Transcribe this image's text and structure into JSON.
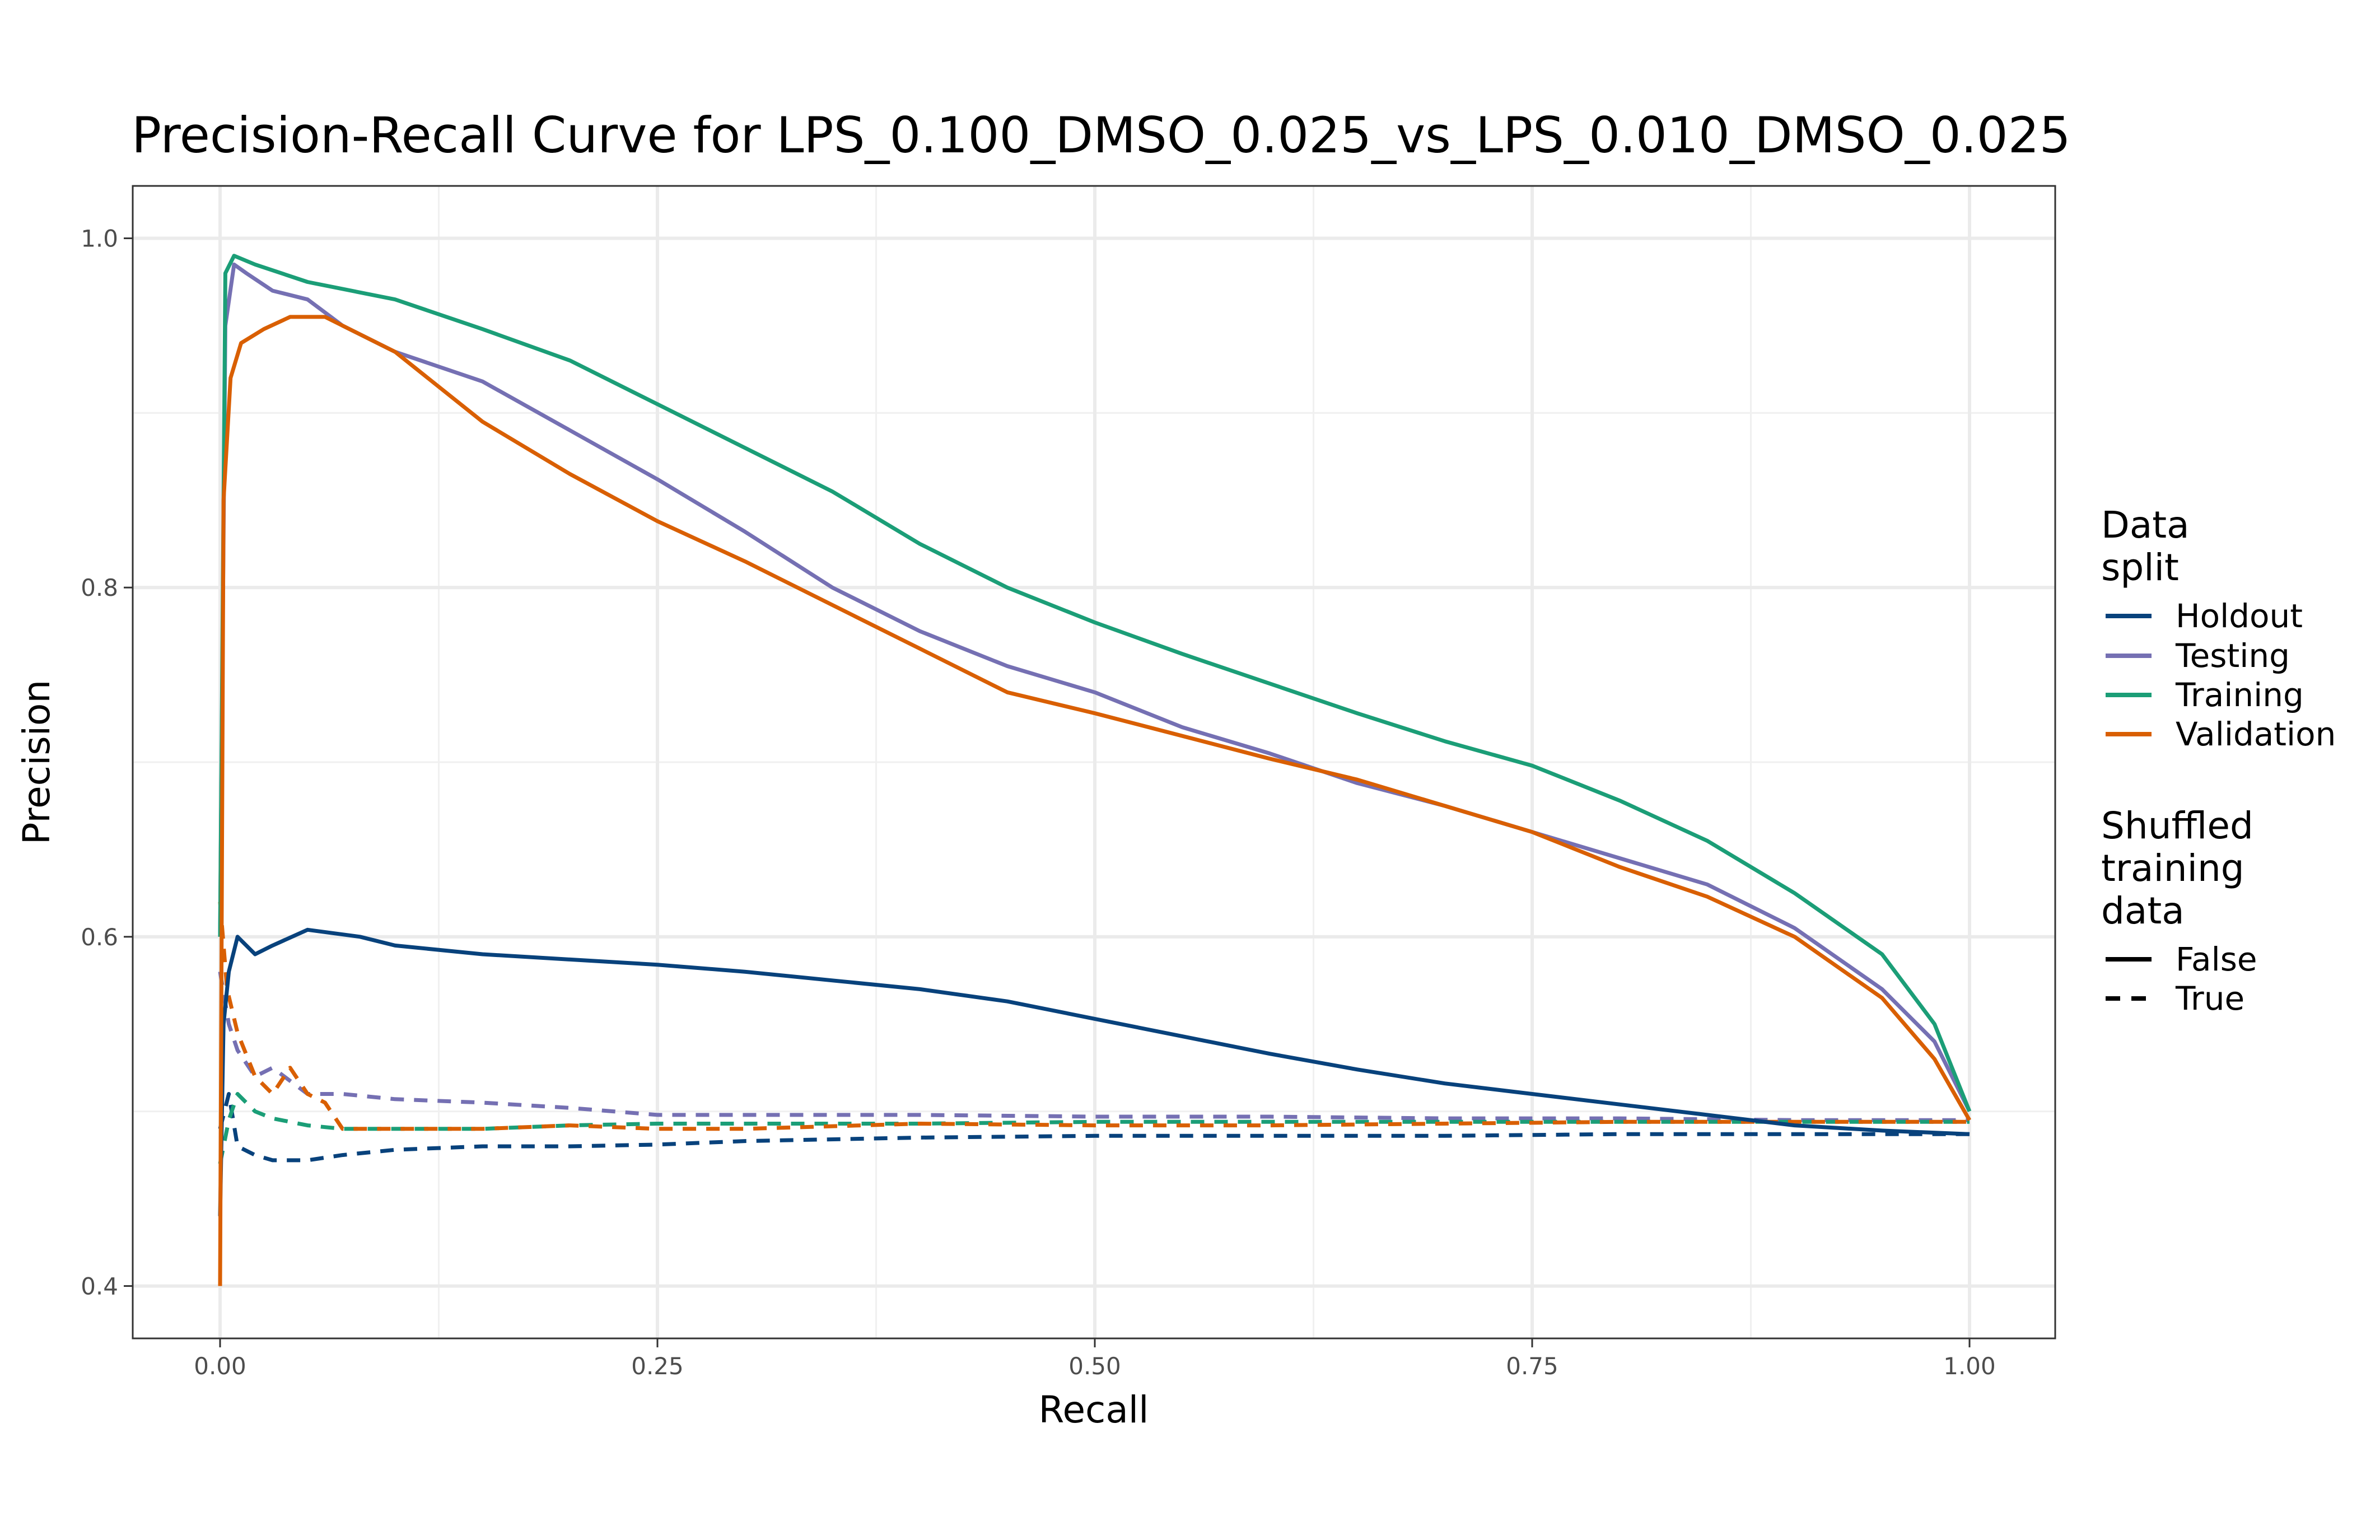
{
  "chart_data": {
    "type": "line",
    "title": "Precision-Recall Curve for LPS_0.100_DMSO_0.025_vs_LPS_0.010_DMSO_0.025",
    "xlabel": "Recall",
    "ylabel": "Precision",
    "xlim": [
      0,
      1
    ],
    "ylim": [
      0.37,
      1.03
    ],
    "x_ticks": [
      0.0,
      0.25,
      0.5,
      0.75,
      1.0
    ],
    "x_tick_labels": [
      "0.00",
      "0.25",
      "0.50",
      "0.75",
      "1.00"
    ],
    "y_ticks": [
      0.4,
      0.6,
      0.8,
      1.0
    ],
    "y_tick_labels": [
      "0.4",
      "0.6",
      "0.8",
      "1.0"
    ],
    "grid": true,
    "legend": {
      "placement": "right",
      "color_title": [
        "Data",
        "split"
      ],
      "linetype_title": [
        "Shuffled",
        "training",
        "data"
      ],
      "color_entries": [
        {
          "label": "Holdout",
          "color": "#08427c"
        },
        {
          "label": "Testing",
          "color": "#7570b3"
        },
        {
          "label": "Training",
          "color": "#1b9e77"
        },
        {
          "label": "Validation",
          "color": "#d95f02"
        }
      ],
      "linetype_entries": [
        {
          "label": "False",
          "dash": "solid"
        },
        {
          "label": "True",
          "dash": "dashed"
        }
      ]
    },
    "series": [
      {
        "split": "Holdout",
        "shuffled": "False",
        "color": "#08427c",
        "dash": "solid",
        "x": [
          0,
          0.002,
          0.005,
          0.01,
          0.02,
          0.03,
          0.05,
          0.08,
          0.1,
          0.15,
          0.2,
          0.25,
          0.3,
          0.35,
          0.4,
          0.45,
          0.5,
          0.55,
          0.6,
          0.65,
          0.7,
          0.75,
          0.8,
          0.85,
          0.9,
          0.95,
          1.0
        ],
        "y": [
          0.44,
          0.55,
          0.58,
          0.6,
          0.59,
          0.595,
          0.604,
          0.6,
          0.595,
          0.59,
          0.587,
          0.584,
          0.58,
          0.575,
          0.57,
          0.563,
          0.553,
          0.543,
          0.533,
          0.524,
          0.516,
          0.51,
          0.504,
          0.498,
          0.492,
          0.489,
          0.487
        ]
      },
      {
        "split": "Testing",
        "shuffled": "False",
        "color": "#7570b3",
        "dash": "solid",
        "x": [
          0,
          0.003,
          0.008,
          0.015,
          0.03,
          0.05,
          0.07,
          0.1,
          0.15,
          0.2,
          0.25,
          0.3,
          0.35,
          0.4,
          0.45,
          0.5,
          0.55,
          0.6,
          0.65,
          0.7,
          0.75,
          0.8,
          0.85,
          0.9,
          0.95,
          0.98,
          1.0
        ],
        "y": [
          0.6,
          0.95,
          0.985,
          0.98,
          0.97,
          0.965,
          0.95,
          0.935,
          0.918,
          0.89,
          0.862,
          0.832,
          0.8,
          0.775,
          0.755,
          0.74,
          0.72,
          0.705,
          0.688,
          0.675,
          0.66,
          0.645,
          0.63,
          0.605,
          0.57,
          0.54,
          0.5
        ]
      },
      {
        "split": "Training",
        "shuffled": "False",
        "color": "#1b9e77",
        "dash": "solid",
        "x": [
          0,
          0.003,
          0.008,
          0.02,
          0.05,
          0.1,
          0.15,
          0.2,
          0.25,
          0.3,
          0.35,
          0.4,
          0.45,
          0.5,
          0.55,
          0.6,
          0.65,
          0.7,
          0.75,
          0.8,
          0.85,
          0.9,
          0.95,
          0.98,
          1.0
        ],
        "y": [
          0.6,
          0.98,
          0.99,
          0.985,
          0.975,
          0.965,
          0.948,
          0.93,
          0.905,
          0.88,
          0.855,
          0.825,
          0.8,
          0.78,
          0.762,
          0.745,
          0.728,
          0.712,
          0.698,
          0.678,
          0.655,
          0.625,
          0.59,
          0.55,
          0.5
        ]
      },
      {
        "split": "Validation",
        "shuffled": "False",
        "color": "#d95f02",
        "dash": "solid",
        "x": [
          0,
          0.002,
          0.006,
          0.012,
          0.025,
          0.04,
          0.06,
          0.1,
          0.15,
          0.2,
          0.25,
          0.3,
          0.35,
          0.4,
          0.45,
          0.5,
          0.55,
          0.6,
          0.65,
          0.7,
          0.75,
          0.8,
          0.85,
          0.9,
          0.95,
          0.98,
          1.0
        ],
        "y": [
          0.4,
          0.85,
          0.92,
          0.94,
          0.948,
          0.955,
          0.955,
          0.935,
          0.895,
          0.865,
          0.838,
          0.815,
          0.79,
          0.765,
          0.74,
          0.728,
          0.715,
          0.702,
          0.69,
          0.675,
          0.66,
          0.64,
          0.623,
          0.6,
          0.565,
          0.53,
          0.495
        ]
      },
      {
        "split": "Holdout",
        "shuffled": "True",
        "color": "#08427c",
        "dash": "dashed",
        "x": [
          0,
          0.005,
          0.01,
          0.02,
          0.03,
          0.05,
          0.07,
          0.1,
          0.15,
          0.2,
          0.25,
          0.3,
          0.4,
          0.5,
          0.6,
          0.7,
          0.8,
          0.9,
          1.0
        ],
        "y": [
          0.49,
          0.51,
          0.48,
          0.475,
          0.472,
          0.472,
          0.475,
          0.478,
          0.48,
          0.48,
          0.481,
          0.483,
          0.485,
          0.486,
          0.486,
          0.486,
          0.487,
          0.487,
          0.487
        ]
      },
      {
        "split": "Testing",
        "shuffled": "True",
        "color": "#7570b3",
        "dash": "dashed",
        "x": [
          0,
          0.005,
          0.01,
          0.02,
          0.03,
          0.05,
          0.07,
          0.1,
          0.15,
          0.2,
          0.25,
          0.3,
          0.4,
          0.5,
          0.6,
          0.7,
          0.8,
          0.9,
          1.0
        ],
        "y": [
          0.58,
          0.55,
          0.535,
          0.52,
          0.525,
          0.51,
          0.51,
          0.507,
          0.505,
          0.502,
          0.498,
          0.498,
          0.498,
          0.497,
          0.497,
          0.496,
          0.496,
          0.495,
          0.495
        ]
      },
      {
        "split": "Training",
        "shuffled": "True",
        "color": "#1b9e77",
        "dash": "dashed",
        "x": [
          0,
          0.005,
          0.01,
          0.02,
          0.03,
          0.05,
          0.07,
          0.1,
          0.15,
          0.2,
          0.25,
          0.3,
          0.4,
          0.5,
          0.6,
          0.7,
          0.8,
          0.9,
          1.0
        ],
        "y": [
          0.47,
          0.495,
          0.51,
          0.5,
          0.496,
          0.492,
          0.49,
          0.49,
          0.49,
          0.492,
          0.493,
          0.493,
          0.493,
          0.494,
          0.494,
          0.494,
          0.494,
          0.494,
          0.494
        ]
      },
      {
        "split": "Validation",
        "shuffled": "True",
        "color": "#d95f02",
        "dash": "dashed",
        "x": [
          0,
          0.004,
          0.01,
          0.02,
          0.03,
          0.04,
          0.05,
          0.06,
          0.07,
          0.1,
          0.15,
          0.2,
          0.25,
          0.3,
          0.4,
          0.5,
          0.6,
          0.7,
          0.8,
          0.9,
          1.0
        ],
        "y": [
          0.62,
          0.57,
          0.545,
          0.52,
          0.51,
          0.525,
          0.51,
          0.505,
          0.49,
          0.49,
          0.49,
          0.492,
          0.49,
          0.49,
          0.493,
          0.492,
          0.492,
          0.493,
          0.494,
          0.494,
          0.494
        ]
      }
    ]
  }
}
